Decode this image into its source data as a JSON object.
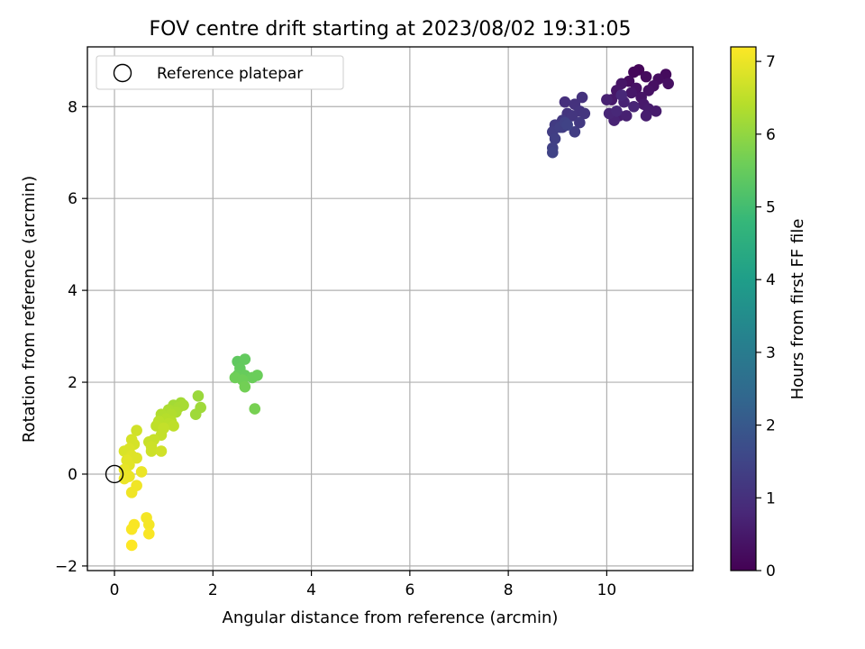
{
  "chart_data": {
    "type": "scatter",
    "title": "FOV centre drift starting at 2023/08/02 19:31:05",
    "xlabel": "Angular distance from reference (arcmin)",
    "ylabel": "Rotation from reference (arcmin)",
    "xlim": [
      -0.55,
      11.75
    ],
    "ylim": [
      -2.1,
      9.3
    ],
    "xticks": [
      0,
      2,
      4,
      6,
      8,
      10
    ],
    "yticks": [
      -2,
      0,
      2,
      4,
      6,
      8
    ],
    "grid": true,
    "legend": {
      "position": "top-left",
      "entries": [
        "Reference platepar"
      ]
    },
    "reference_point": {
      "x": 0,
      "y": 0,
      "label": "Reference platepar"
    },
    "colorbar": {
      "label": "Hours from first FF file",
      "range": [
        0,
        7.2
      ],
      "ticks": [
        0,
        1,
        2,
        3,
        4,
        5,
        6,
        7
      ],
      "colormap": "viridis",
      "stops": [
        "#440154",
        "#482878",
        "#3e4989",
        "#31688e",
        "#26828e",
        "#1f9e89",
        "#35b779",
        "#6ece58",
        "#b5de2b",
        "#fde725"
      ]
    },
    "points": [
      [
        10.65,
        8.8,
        0.1
      ],
      [
        10.55,
        8.75,
        0.15
      ],
      [
        10.8,
        8.65,
        0.2
      ],
      [
        11.2,
        8.7,
        0.2
      ],
      [
        10.45,
        8.55,
        0.25
      ],
      [
        11.05,
        8.6,
        0.25
      ],
      [
        10.95,
        8.45,
        0.3
      ],
      [
        11.25,
        8.5,
        0.3
      ],
      [
        10.6,
        8.4,
        0.35
      ],
      [
        10.85,
        8.35,
        0.35
      ],
      [
        10.7,
        8.2,
        0.4
      ],
      [
        10.3,
        8.5,
        0.4
      ],
      [
        10.5,
        8.3,
        0.45
      ],
      [
        10.2,
        8.35,
        0.45
      ],
      [
        10.75,
        8.05,
        0.5
      ],
      [
        10.1,
        8.15,
        0.5
      ],
      [
        10.85,
        7.95,
        0.55
      ],
      [
        11.0,
        7.9,
        0.55
      ],
      [
        10.8,
        7.8,
        0.6
      ],
      [
        10.25,
        7.8,
        0.6
      ],
      [
        10.4,
        7.8,
        0.65
      ],
      [
        10.0,
        8.15,
        0.65
      ],
      [
        10.15,
        7.7,
        0.7
      ],
      [
        10.35,
        8.1,
        0.7
      ],
      [
        10.05,
        7.85,
        0.75
      ],
      [
        10.55,
        8.0,
        0.75
      ],
      [
        10.3,
        8.25,
        0.8
      ],
      [
        10.2,
        7.9,
        0.8
      ],
      [
        9.15,
        8.1,
        1.0
      ],
      [
        9.5,
        8.2,
        1.05
      ],
      [
        9.35,
        8.05,
        1.05
      ],
      [
        9.2,
        7.85,
        1.1
      ],
      [
        9.45,
        7.9,
        1.1
      ],
      [
        9.3,
        7.8,
        1.15
      ],
      [
        9.55,
        7.85,
        1.15
      ],
      [
        9.1,
        7.7,
        1.2
      ],
      [
        9.45,
        7.65,
        1.2
      ],
      [
        8.95,
        7.6,
        1.25
      ],
      [
        9.1,
        7.55,
        1.25
      ],
      [
        8.9,
        7.45,
        1.3
      ],
      [
        9.35,
        7.45,
        1.3
      ],
      [
        9.05,
        7.55,
        1.35
      ],
      [
        8.95,
        7.3,
        1.35
      ],
      [
        8.9,
        7.1,
        1.4
      ],
      [
        8.9,
        7.0,
        1.45
      ],
      [
        9.15,
        7.65,
        1.4
      ],
      [
        9.2,
        7.6,
        1.45
      ],
      [
        2.5,
        2.45,
        5.4
      ],
      [
        2.65,
        2.5,
        5.45
      ],
      [
        2.55,
        2.3,
        5.45
      ],
      [
        2.5,
        2.15,
        5.5
      ],
      [
        2.65,
        2.15,
        5.5
      ],
      [
        2.8,
        2.1,
        5.55
      ],
      [
        2.9,
        2.15,
        5.55
      ],
      [
        2.45,
        2.1,
        5.6
      ],
      [
        2.6,
        2.05,
        5.6
      ],
      [
        2.65,
        1.9,
        5.65
      ],
      [
        2.85,
        1.42,
        5.7
      ],
      [
        1.7,
        1.7,
        6.1
      ],
      [
        1.75,
        1.45,
        6.15
      ],
      [
        1.65,
        1.3,
        6.15
      ],
      [
        1.35,
        1.55,
        6.2
      ],
      [
        1.2,
        1.5,
        6.2
      ],
      [
        1.3,
        1.45,
        6.25
      ],
      [
        1.4,
        1.5,
        6.25
      ],
      [
        1.1,
        1.4,
        6.3
      ],
      [
        1.25,
        1.35,
        6.3
      ],
      [
        1.15,
        1.3,
        6.35
      ],
      [
        0.95,
        1.3,
        6.35
      ],
      [
        1.05,
        1.2,
        6.4
      ],
      [
        1.15,
        1.15,
        6.4
      ],
      [
        0.9,
        1.15,
        6.45
      ],
      [
        1.1,
        1.1,
        6.45
      ],
      [
        0.85,
        1.05,
        6.5
      ],
      [
        1.2,
        1.05,
        6.5
      ],
      [
        1.0,
        1.0,
        6.55
      ],
      [
        0.95,
        0.85,
        6.55
      ],
      [
        0.8,
        0.75,
        6.6
      ],
      [
        0.7,
        0.7,
        6.6
      ],
      [
        0.75,
        0.6,
        6.65
      ],
      [
        0.75,
        0.5,
        6.65
      ],
      [
        0.95,
        0.5,
        6.7
      ],
      [
        0.45,
        0.95,
        6.7
      ],
      [
        0.35,
        0.75,
        6.75
      ],
      [
        0.4,
        0.65,
        6.75
      ],
      [
        0.2,
        0.5,
        6.8
      ],
      [
        0.3,
        0.55,
        6.8
      ],
      [
        0.35,
        0.4,
        6.85
      ],
      [
        0.45,
        0.35,
        6.85
      ],
      [
        0.25,
        0.3,
        6.9
      ],
      [
        0.3,
        0.2,
        6.9
      ],
      [
        0.2,
        0.1,
        6.95
      ],
      [
        0.25,
        0.0,
        6.95
      ],
      [
        0.3,
        -0.05,
        7.0
      ],
      [
        0.2,
        -0.1,
        7.0
      ],
      [
        0.55,
        0.05,
        7.0
      ],
      [
        0.45,
        -0.25,
        7.05
      ],
      [
        0.35,
        -0.4,
        7.05
      ],
      [
        0.65,
        -0.95,
        7.1
      ],
      [
        0.7,
        -1.1,
        7.1
      ],
      [
        0.4,
        -1.1,
        7.15
      ],
      [
        0.35,
        -1.2,
        7.15
      ],
      [
        0.7,
        -1.3,
        7.15
      ],
      [
        0.35,
        -1.55,
        7.2
      ]
    ]
  }
}
